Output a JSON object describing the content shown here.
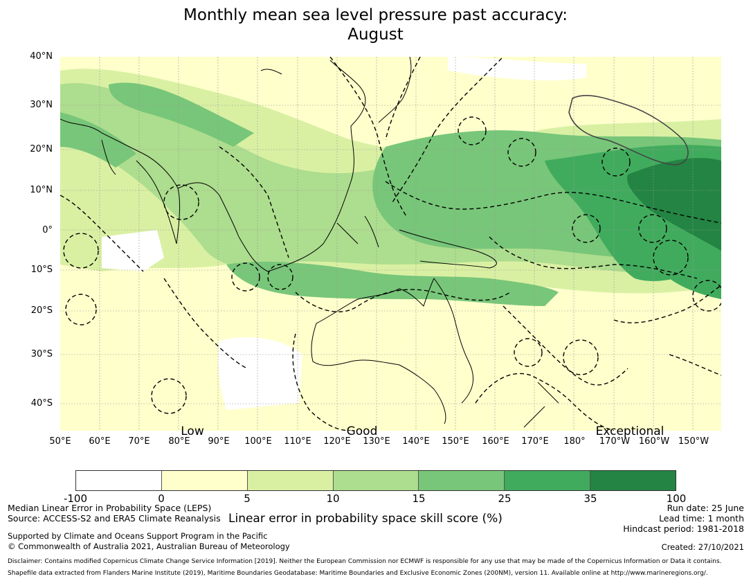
{
  "title_line1": "Monthly mean sea level pressure past accuracy:",
  "title_line2": "August",
  "lat_labels": [
    "40°N",
    "30°N",
    "20°N",
    "10°N",
    "0°",
    "10°S",
    "20°S",
    "30°S",
    "40°S"
  ],
  "lon_labels": [
    "50°E",
    "60°E",
    "70°E",
    "80°E",
    "90°E",
    "100°E",
    "110°E",
    "120°E",
    "130°E",
    "140°E",
    "150°E",
    "160°E",
    "170°E",
    "180°",
    "170°W",
    "160°W",
    "150°W"
  ],
  "categories": [
    "Low",
    "Good",
    "Exceptional"
  ],
  "colorbar": {
    "ticks": [
      "-100",
      "0",
      "5",
      "10",
      "15",
      "25",
      "35",
      "100"
    ],
    "colors": [
      "#ffffff",
      "#ffffcc",
      "#d9f0a3",
      "#addd8e",
      "#78c679",
      "#41ab5d",
      "#238443"
    ],
    "label": "Linear error in probability space skill score (%)"
  },
  "footer_left": {
    "line1": "Median Linear Error in Probability Space (LEPS)",
    "line2": "Source: ACCESS-S2 and ERA5 Climate Reanalysis",
    "line3": "Supported by Climate and Oceans Support Program in the Pacific",
    "line4": "© Commonwealth of Australia 2021, Australian Bureau of Meteorology"
  },
  "footer_right": {
    "run_date": "Run date: 25 June",
    "lead_time": "Lead time: 1 month",
    "hindcast": "Hindcast period: 1981-2018",
    "created": "Created: 27/10/2021"
  },
  "disclaimer1": "Disclaimer: Contains modified Copernicus Climate Change Service Information [2019]. Neither the European Commission nor ECMWF is responsible for any use that may be made of the Copernicus Information or Data it contains.",
  "disclaimer2": "Shapefile data extracted from Flanders Marine Institute (2019), Maritime Boundaries Geodatabase: Maritime Boundaries and Exclusive Economic Zones (200NM), version 11. Available online at http://www.marineregions.org/."
}
